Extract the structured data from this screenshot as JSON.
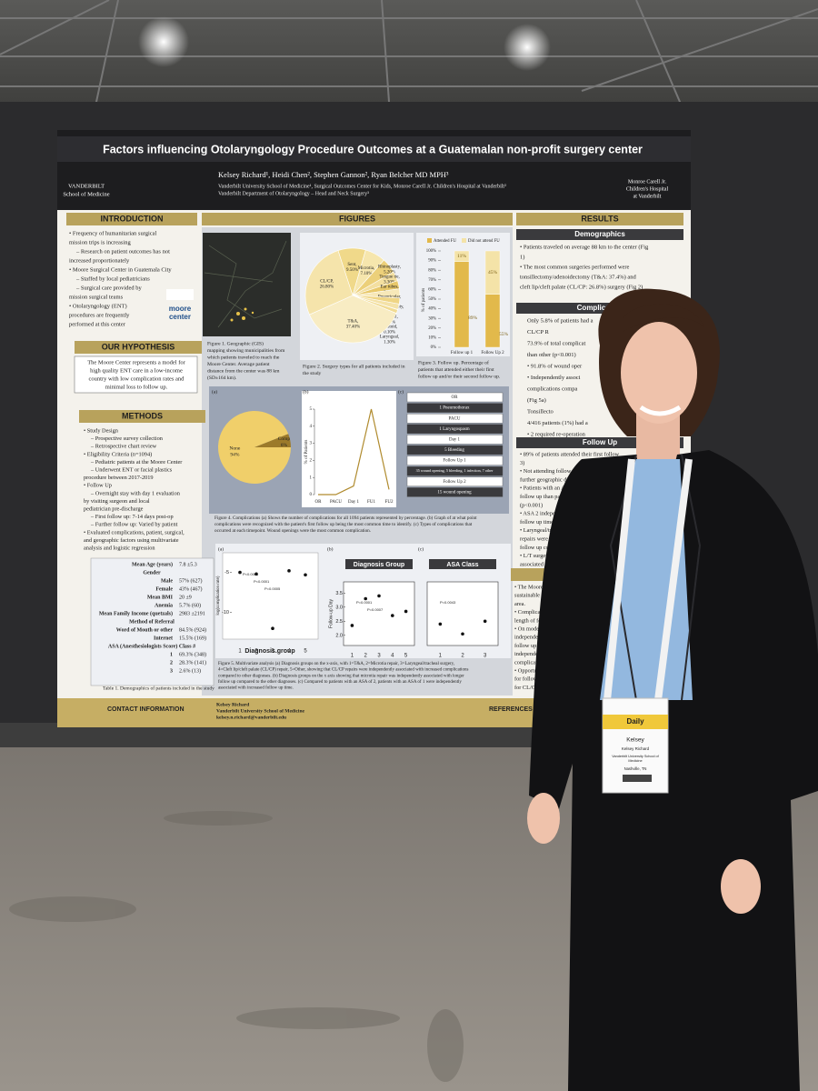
{
  "poster": {
    "title": "Factors influencing Otolaryngology Procedure Outcomes at a Guatemalan non-profit surgery center",
    "authors": "Kelsey Richard¹, Heidi Chen², Stephen Gannon², Ryan Belcher MD MPH³",
    "affiliations": [
      "Vanderbilt University School of Medicine¹, Surgical Outcomes Center for Kids, Monroe Carell Jr. Children's Hospital at Vanderbilt²",
      "Vanderbilt Department of Otolaryngology – Head and Neck Surgery³"
    ],
    "left_logo": [
      "VANDERBILT",
      "School of Medicine"
    ],
    "right_logo": [
      "Monroe Carell Jr.",
      "Children's Hospital",
      "at Vanderbilt"
    ],
    "introduction": {
      "heading": "INTRODUCTION",
      "lines": [
        "• Frequency of humanitarian surgical",
        "  mission trips is increasing",
        "– Research on patient outcomes has not",
        "  increased proportionately",
        "• Moore Surgical Center in Guatemala City",
        "– Staffed by local pediatricians",
        "– Surgical care provided by",
        "  mission surgical teams",
        "• Otolaryngology (ENT)",
        "  procedures are frequently",
        "  performed at this center"
      ],
      "logo": [
        "moore",
        "center"
      ]
    },
    "hypothesis": {
      "heading": "OUR HYPOTHESIS",
      "lines": [
        "The Moore Center represents a model for",
        "high quality ENT care in a low-income",
        "country with low complication rates and",
        "minimal loss to follow up."
      ]
    },
    "methods": {
      "heading": "METHODS",
      "lines": [
        "• Study Design",
        "– Prospective survey collection",
        "– Retrospective chart review",
        "• Eligibility Criteria (n=1094)",
        "– Pediatric patients at the Moore Center",
        "– Underwent ENT or facial plastics",
        "  procedure between 2017-2019",
        "• Follow Up",
        "– Overnight stay with day 1 evaluation",
        "  by visiting surgeon and local",
        "  pediatrician pre-discharge",
        "– First follow up: 7-14 days post-op",
        "– Further follow up: Varied by patient",
        "• Evaluated complications, patient, surgical,",
        "  and geographic factors using multivariate",
        "  analysis and logistic regression"
      ]
    },
    "table": {
      "rows": [
        [
          "Mean Age (years)",
          "7.8 ±5.3"
        ],
        [
          "Gender"
        ],
        [
          "Male",
          "57% (627)"
        ],
        [
          "Female",
          "43% (467)"
        ],
        [
          "Mean BMI",
          "20 ±9"
        ],
        [
          "Anemia",
          "5.7% (60)"
        ],
        [
          "Mean Family Income (quetzals)",
          "2983 ±2191"
        ],
        [
          "Method of Referral"
        ],
        [
          "Word of Mouth or other",
          "84.5% (924)"
        ],
        [
          "Internet",
          "15.5% (169)"
        ],
        [
          "ASA (Anesthesiologists Score) Class #"
        ],
        [
          "1",
          "69.3% (348)"
        ],
        [
          "2",
          "28.3% (141)"
        ],
        [
          "3",
          "2.6% (13)"
        ]
      ],
      "caption": "Table 1. Demographics of patients included in the study"
    },
    "figures": {
      "heading": "FIGURES",
      "fig1_caption": [
        "Figure 1. Geographic (GIS)",
        "mapping showing municipalities from",
        "which patients traveled to reach the",
        "Moore Center. Average patient",
        "distance from the center was 88 km",
        "(SD±164 km)."
      ],
      "fig2": {
        "type": "pie",
        "categories": [
          "Sent,",
          "Microtia,",
          "Rhinoplasty,",
          "Tongue tie,",
          "Ear tubes,",
          "Preauricular,",
          "Tympanoplasty,",
          "Tracheal,",
          "Mastoid,",
          "Laryngeal,",
          "T&A,",
          "CL/CP,"
        ],
        "values": [
          9.5,
          7.1,
          5.2,
          3.3,
          2.8,
          3.1,
          2.1,
          1.9,
          0.1,
          1.3,
          37.4,
          26.8
        ],
        "value_labels": [
          "9.50%",
          "7.10%",
          "5.20%",
          "3.30%",
          "2.80%",
          "3.10%",
          "2.10%",
          "1.90%",
          "0.10%",
          "1.30%",
          "37.40%",
          "26.80%"
        ],
        "colors": [
          "#f0d98a",
          "#f6e6ad",
          "#ecd07a",
          "#f3dfa0",
          "#e8c86a",
          "#f7e8b8",
          "#efd585",
          "#f4e2a8",
          "#e9cb70",
          "#f1db93",
          "#f8ecc3",
          "#f5e4ab"
        ],
        "caption": [
          "Figure 2. Surgery types for all patients included in",
          "the study"
        ]
      },
      "fig3": {
        "type": "bar",
        "categories": [
          "Follow up 1",
          "Follow Up 2"
        ],
        "series": [
          {
            "name": "Attended FU",
            "color": "#e2b94b",
            "values": [
              89,
              55
            ],
            "value_labels": [
              "89%",
              "55%"
            ]
          },
          {
            "name": "Did not attend FU",
            "color": "#f4e3a8",
            "values": [
              11,
              45
            ],
            "value_labels": [
              "11%",
              "45%"
            ]
          }
        ],
        "ylim": [
          0,
          100
        ],
        "yticks": [
          {
            "value": 0,
            "label": "0%"
          },
          {
            "value": 10,
            "label": "10%"
          },
          {
            "value": 20,
            "label": "20%"
          },
          {
            "value": 30,
            "label": "30%"
          },
          {
            "value": 40,
            "label": "40%"
          },
          {
            "value": 50,
            "label": "50%"
          },
          {
            "value": 60,
            "label": "60%"
          },
          {
            "value": 70,
            "label": "70%"
          },
          {
            "value": 80,
            "label": "80%"
          },
          {
            "value": 90,
            "label": "90%"
          },
          {
            "value": 100,
            "label": "100%"
          }
        ],
        "ylabel": "% of patients",
        "caption": [
          "Figure 3. Follow up. Percentage of",
          "patients that attended either their first",
          "follow up and/or their second follow up."
        ]
      },
      "fig4": {
        "panel_labels": [
          "(a)",
          "(b)",
          "(c)"
        ],
        "a": {
          "type": "pie",
          "categories": [
            "None",
            "Comp"
          ],
          "values": [
            94,
            6
          ],
          "value_labels": [
            "94%",
            "6%"
          ],
          "colors": [
            "#f0cf6a",
            "#9c7a2a"
          ]
        },
        "b": {
          "type": "line",
          "categories": [
            "OR",
            "PACU",
            "Day 1",
            "FU1",
            "FU2"
          ],
          "values": [
            0,
            0,
            0.5,
            5,
            0.3
          ],
          "ylim": [
            0,
            5
          ],
          "yticks": [
            0,
            1,
            2,
            3,
            4,
            5
          ],
          "ylabel": "% of Patients",
          "color": "#b08b2e"
        },
        "c": {
          "type": "flow",
          "steps": [
            "OR",
            "1 Pneumothorax",
            "PACU",
            "1 Laryngospasm",
            "Day 1",
            "5 Bleeding",
            "Follow Up 1",
            "35 wound opening, 5 bleeding, 1 infection, 7 other",
            "Follow Up 2",
            "15 wound opening"
          ]
        },
        "caption": [
          "Figure 4. Complications (a) Shows the number of complications for all 1094 patients represented by percentage. (b) Graph of at what point",
          "complications were recognized with the patient's first follow up being the most common time to identify. (c) Types of complications that",
          "occurred at each timepoint. Wound openings were the most common complication."
        ]
      },
      "fig5": {
        "panel_labels": [
          "(a)",
          "(b)",
          "(c)"
        ],
        "a": {
          "type": "scatter",
          "categories": [
            "1",
            "2",
            "3",
            "4",
            "5"
          ],
          "values": [
            -5,
            -5.2,
            -12,
            -4.8,
            -5.3
          ],
          "ylim": [
            -13,
            -3
          ],
          "yticks": [
            -5,
            -10
          ],
          "xlabel": "Diagnosis.group",
          "ylabel": "log(complication rate)",
          "annotations": [
            "P<0.0001",
            "P<0.0001",
            "P=0.0005"
          ]
        },
        "b": {
          "type": "scatter",
          "title": "Diagnosis Group",
          "categories": [
            "1",
            "2",
            "3",
            "4",
            "5"
          ],
          "values": [
            2.35,
            3.3,
            3.4,
            2.7,
            2.85
          ],
          "ylim": [
            1.8,
            3.8
          ],
          "yticks": [
            {
              "value": 2,
              "label": "2.0"
            },
            2.5,
            {
              "value": 3,
              "label": "3.0"
            },
            3.5
          ],
          "ylabel": "Follow-up Day",
          "annotations": [
            "P=0.0001",
            "P=0.0007"
          ]
        },
        "c": {
          "type": "scatter",
          "title": "ASA Class",
          "categories": [
            "1",
            "2",
            "3"
          ],
          "values": [
            2.4,
            2.05,
            2.5
          ],
          "ylim": [
            1.8,
            3.8
          ],
          "annotations": [
            "P=0.0043"
          ]
        },
        "caption": [
          "Figure 5. Multivariate analysis (a) Diagnosis groups on the x-axis, with 1=T&A, 2=Microtia repair, 3=Laryngeal/tracheal surgery,",
          "4=Cleft lip/cleft palate (CL/CP) repair, 5=Other, showing that CL/CP repairs were independently associated with increased complications",
          "compared to other diagnoses. (b) Diagnosis groups on the x axis showing that microtia repair was independently associated with longer",
          "follow up compared to the other diagnoses. (c) Compared to patients with an ASA of 2, patients with an ASA of 1 were independently",
          "associated with increased follow up time."
        ]
      }
    },
    "results": {
      "heading": "RESULTS",
      "demographics": {
        "heading": "Demographics",
        "lines": [
          "• Patients traveled on average 88 km to the center (Fig",
          "  1)",
          "• The most common surgeries performed were",
          "  tonsillectomy/adenoidectomy (T&A: 37.4%) and",
          "  cleft lip/cleft palate (CL/CP: 26.8%) surgery (Fig 2)"
        ]
      },
      "complications": {
        "heading": "Complication",
        "lines": [
          "Only 5.8% of patients had a",
          "CL/CP R",
          "73.9% of total complicat",
          "than other (p<0.001)",
          "• 91.8% of wound oper",
          "• Independently associ",
          "  complications compa",
          "  (Fig 5a)",
          "Tonsillecto",
          "4/416 patients (1%) had a",
          "• 2 required re-operation"
        ]
      },
      "follow_up": {
        "heading": "Follow Up",
        "lines": [
          "• 89% of patients attended their first follow",
          "  3)",
          "• Not attending follow up was a",
          "  further geographic dis",
          "• Patients with an ASA",
          "  follow up than patien",
          "  (p<0.001)",
          "• ASA 2 independen",
          "  follow up time (p",
          "• Laryngeal/tracheal",
          "  repairs were associ",
          "  follow up compared",
          "• L/T surgeries and",
          "  associated with lo"
        ]
      },
      "conclusions": {
        "heading": "CONC",
        "lines": [
          "• The Moore Center",
          "  sustainable surg",
          "  area.",
          "• Complication r",
          "  length of follow",
          "• On modeling, ",
          "  independently",
          "  follow up wh",
          "  independent",
          "  complication",
          "• Opportuni",
          "  for follow",
          "  for CL/CP"
        ]
      }
    },
    "contact": {
      "heading": "CONTACT INFORMATION",
      "lines": [
        "Kelsey Richard",
        "Vanderbilt University School of Medicine",
        "kelsey.n.richard@vanderbilt.edu"
      ],
      "references": "REFERENCES &"
    }
  },
  "badge": {
    "header": "Daily",
    "first": "Kelsey",
    "full": "Kelsey Richard",
    "org": [
      "Vanderbilt University School of",
      "Medicine"
    ],
    "city": "Nashville, TN"
  }
}
